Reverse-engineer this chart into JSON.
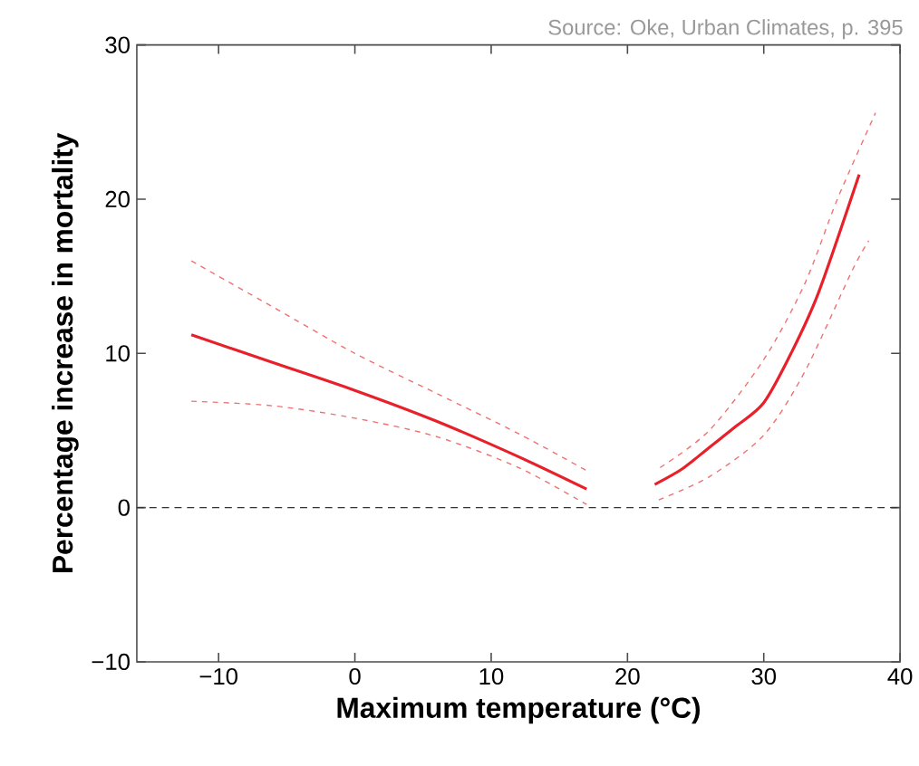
{
  "chart_data": {
    "type": "line",
    "xlabel": "Maximum temperature (°C)",
    "ylabel": "Percentage increase in mortality",
    "annotations": [
      "Source: Oke, Urban Climates,  p. 395"
    ],
    "xlim": [
      -16,
      40
    ],
    "ylim": [
      -10,
      30
    ],
    "xticks": [
      {
        "value": -10,
        "label": "−10"
      },
      0,
      10,
      20,
      30,
      40
    ],
    "yticks": [
      {
        "value": -10,
        "label": "−10"
      },
      0,
      10,
      20,
      30
    ],
    "ref_lines": [
      {
        "axis": "y",
        "value": 0,
        "color": "#333333",
        "line_style": "dashed"
      }
    ],
    "series": [
      {
        "color": "#f07070",
        "line_style": "dashed",
        "x": [
          -12,
          -6,
          0,
          6,
          12,
          17
        ],
        "values": [
          16,
          13,
          10,
          7.4,
          4.8,
          2.4
        ]
      },
      {
        "color": "#f07070",
        "line_style": "dashed",
        "x": [
          -12,
          -6,
          0,
          6,
          12,
          17
        ],
        "values": [
          6.9,
          6.6,
          5.8,
          4.6,
          2.6,
          0.2
        ]
      },
      {
        "color": "#e8202a",
        "line_style": "solid",
        "x": [
          -12,
          -6,
          0,
          6,
          12,
          17
        ],
        "values": [
          11.2,
          9.4,
          7.6,
          5.6,
          3.3,
          1.2
        ]
      },
      {
        "color": "#f07070",
        "line_style": "dashed",
        "x": [
          22.4,
          26,
          30,
          33,
          35.4,
          38.2
        ],
        "values": [
          2.6,
          5.0,
          9.6,
          14.5,
          20,
          25.6
        ]
      },
      {
        "color": "#f07070",
        "line_style": "dashed",
        "x": [
          22.3,
          26,
          30,
          33,
          36.5,
          37.7
        ],
        "values": [
          0.5,
          2.0,
          4.7,
          8.8,
          15.4,
          17.3
        ]
      },
      {
        "color": "#e8202a",
        "line_style": "solid",
        "x": [
          22,
          24,
          26,
          28,
          30,
          32,
          34,
          37
        ],
        "values": [
          1.5,
          2.5,
          3.9,
          5.3,
          6.8,
          10.0,
          13.9,
          21.6
        ]
      }
    ]
  }
}
